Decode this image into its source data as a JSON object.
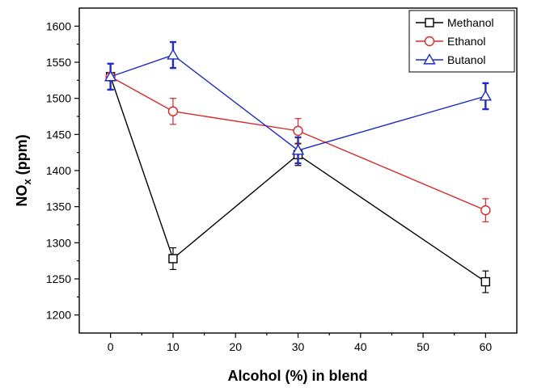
{
  "chart_data": {
    "type": "line",
    "xlabel": "Alcohol (%) in blend",
    "ylabel_main": "NO",
    "ylabel_sub": "x",
    "ylabel_unit": " (ppm)",
    "xlim": [
      -5,
      65
    ],
    "ylim": [
      1175,
      1625
    ],
    "x_ticks": [
      0,
      10,
      20,
      30,
      40,
      50,
      60
    ],
    "y_ticks": [
      1200,
      1250,
      1300,
      1350,
      1400,
      1450,
      1500,
      1550,
      1600
    ],
    "legend_position": "top-right",
    "grid": false,
    "series": [
      {
        "name": "Methanol",
        "color": "#000000",
        "marker": "square",
        "x": [
          0,
          10,
          30,
          60
        ],
        "y": [
          1530,
          1278,
          1422,
          1246
        ],
        "err": [
          18,
          15,
          15,
          15
        ]
      },
      {
        "name": "Ethanol",
        "color": "#d42a2a",
        "marker": "circle",
        "x": [
          0,
          10,
          30,
          60
        ],
        "y": [
          1530,
          1482,
          1455,
          1345
        ],
        "err": [
          18,
          18,
          17,
          16
        ]
      },
      {
        "name": "Butanol",
        "color": "#1f2dbf",
        "marker": "triangle",
        "x": [
          0,
          10,
          30,
          60
        ],
        "y": [
          1530,
          1560,
          1428,
          1503
        ],
        "err": [
          18,
          18,
          18,
          18
        ]
      }
    ]
  }
}
